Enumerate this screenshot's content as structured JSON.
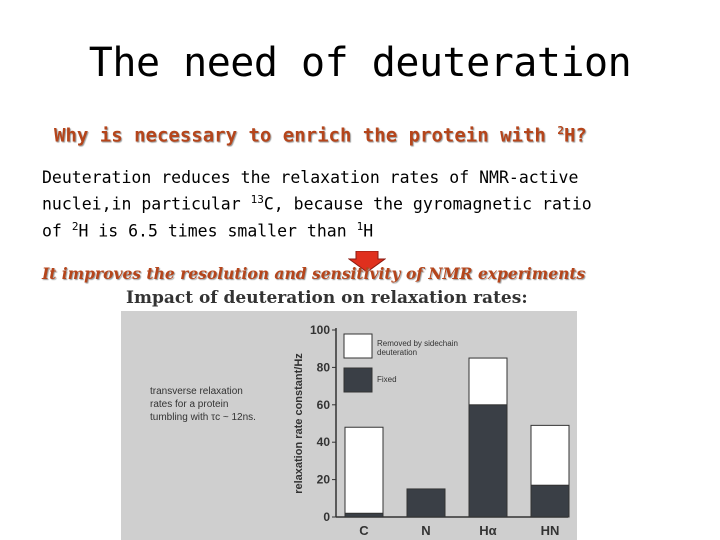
{
  "title": "The need of deuteration",
  "question": {
    "text": "Why is necessary to enrich the protein with ",
    "sup": "2",
    "tail": "H?"
  },
  "body": {
    "line1": "Deuteration reduces the relaxation rates of NMR-active",
    "line2a": "nuclei,in particular ",
    "line2sup": "13",
    "line2b": "C, because the gyromagnetic ratio",
    "line3a": "of ",
    "line3sup1": "2",
    "line3b": "H is 6.5 times smaller than ",
    "line3sup2": "1",
    "line3c": "H"
  },
  "improves": "It improves the resolution and sensitivity of NMR experiments",
  "arrow_color": "#e0301e",
  "figure": {
    "title": "Impact of deuteration on relaxation rates:",
    "annotation": {
      "line1": "transverse relaxation",
      "line2": "rates for a protein",
      "line3": "tumbling with τc ~ 12ns."
    },
    "legend": {
      "removed": "Removed by sidechain deuteration",
      "fixed": "Fixed"
    }
  },
  "chart_data": {
    "type": "bar",
    "stacked": true,
    "categories": [
      "C",
      "N",
      "Hα",
      "HN"
    ],
    "series": [
      {
        "name": "Fixed",
        "values": [
          2,
          15,
          60,
          17
        ],
        "color": "#3a3f46"
      },
      {
        "name": "Removed by sidechain deuteration",
        "values": [
          46,
          0,
          25,
          32
        ],
        "color": "#ffffff"
      }
    ],
    "ylabel": "relaxation rate constant/Hz",
    "yticks": [
      0,
      20,
      40,
      60,
      80,
      100
    ],
    "ylim": [
      0,
      100
    ],
    "grid": false,
    "legend_position": "top-left"
  }
}
